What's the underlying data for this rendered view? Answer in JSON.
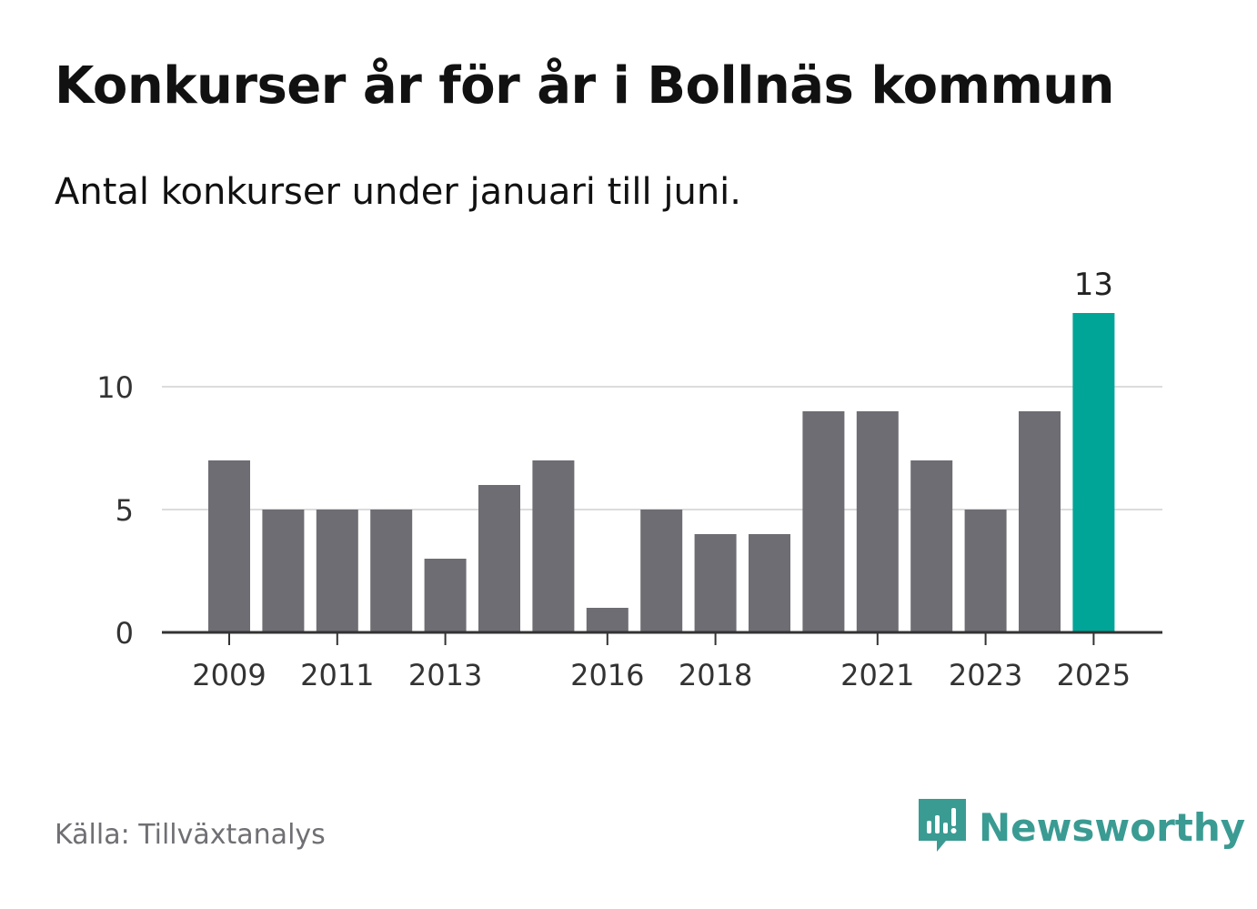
{
  "title": "Konkurser år för år i Bollnäs kommun",
  "subtitle": "Antal konkurser under januari till juni.",
  "source": "Källa: Tillväxtanalys",
  "brand": {
    "name": "Newsworthy",
    "logo_icon": "newsworthy-logo-icon",
    "color": "#3a9b93"
  },
  "colors": {
    "bar": "#6e6d73",
    "highlight": "#00a598",
    "grid": "#dcdcdc",
    "axis": "#333333",
    "text": "#333333"
  },
  "chart_data": {
    "type": "bar",
    "categories": [
      "2009",
      "2010",
      "2011",
      "2012",
      "2013",
      "2014",
      "2015",
      "2016",
      "2017",
      "2018",
      "2019",
      "2020",
      "2021",
      "2022",
      "2023",
      "2024",
      "2025"
    ],
    "values": [
      7,
      5,
      5,
      5,
      3,
      6,
      7,
      1,
      5,
      4,
      4,
      9,
      9,
      7,
      5,
      9,
      13
    ],
    "x_tick_labels": [
      "2009",
      "2011",
      "2013",
      "2016",
      "2018",
      "2021",
      "2023",
      "2025"
    ],
    "y_ticks": [
      0,
      5,
      10
    ],
    "ylim": [
      0,
      13
    ],
    "grid": true,
    "highlight": {
      "category": "2025",
      "label": "13"
    },
    "xlabel": "",
    "ylabel": ""
  }
}
